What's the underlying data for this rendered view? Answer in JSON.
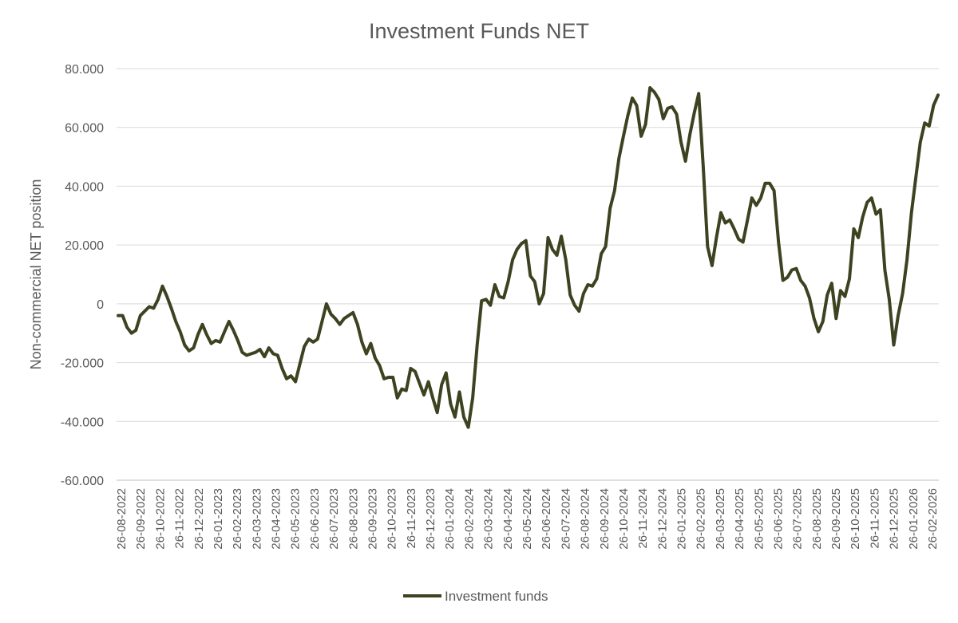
{
  "chart_data": {
    "type": "line",
    "title": "Investment Funds NET",
    "xlabel": "",
    "ylabel": "Non-commercial NET position",
    "ylim": [
      -60000,
      80000
    ],
    "y_ticks": [
      80000,
      60000,
      40000,
      20000,
      0,
      -20000,
      -40000,
      -60000
    ],
    "y_tick_labels": [
      "80.000",
      "60.000",
      "40.000",
      "20.000",
      "0",
      "-20.000",
      "-40.000",
      "-60.000"
    ],
    "x_tick_labels": [
      "26-08-2022",
      "26-09-2022",
      "26-10-2022",
      "26-11-2022",
      "26-12-2022",
      "26-01-2023",
      "26-02-2023",
      "26-03-2023",
      "26-04-2023",
      "26-05-2023",
      "26-06-2023",
      "26-07-2023",
      "26-08-2023",
      "26-09-2023",
      "26-10-2023",
      "26-11-2023",
      "26-12-2023",
      "26-01-2024",
      "26-02-2024",
      "26-03-2024",
      "26-04-2024",
      "26-05-2024",
      "26-06-2024",
      "26-07-2024",
      "26-08-2024",
      "26-09-2024",
      "26-10-2024",
      "26-11-2024",
      "26-12-2024",
      "26-01-2025",
      "26-02-2025",
      "26-03-2025",
      "26-04-2025",
      "26-05-2025",
      "26-06-2025",
      "26-07-2025",
      "26-08-2025",
      "26-09-2025",
      "26-10-2025",
      "26-11-2025",
      "26-12-2025",
      "26-01-2026",
      "26-02-2026"
    ],
    "grid": true,
    "legend_position": "bottom",
    "series": [
      {
        "name": "Investment funds",
        "color": "#3d4220",
        "values": [
          -4000,
          -4000,
          -8000,
          -10000,
          -9000,
          -4000,
          -2500,
          -1000,
          -1500,
          1500,
          6000,
          2500,
          -1500,
          -6000,
          -9500,
          -14000,
          -16000,
          -15000,
          -10500,
          -7000,
          -10500,
          -13500,
          -12500,
          -13000,
          -9500,
          -6000,
          -9000,
          -12500,
          -16500,
          -17500,
          -17000,
          -16500,
          -15500,
          -18000,
          -15000,
          -17000,
          -17500,
          -22000,
          -25500,
          -24500,
          -26500,
          -20500,
          -14500,
          -12000,
          -13000,
          -12000,
          -6000,
          0,
          -3500,
          -5000,
          -7000,
          -5000,
          -4000,
          -3000,
          -7000,
          -13000,
          -17000,
          -13500,
          -18500,
          -21000,
          -25500,
          -25000,
          -25000,
          -32000,
          -29000,
          -29500,
          -22000,
          -23000,
          -27000,
          -31000,
          -26500,
          -32000,
          -37000,
          -27500,
          -23500,
          -34000,
          -38500,
          -30000,
          -38500,
          -42000,
          -32000,
          -14000,
          1000,
          1500,
          -500,
          6500,
          2500,
          2000,
          7500,
          15000,
          18500,
          20500,
          21500,
          9500,
          7500,
          0,
          3500,
          22500,
          18500,
          16500,
          23000,
          15000,
          3000,
          -500,
          -2500,
          3500,
          6500,
          6000,
          8500,
          17000,
          19500,
          32500,
          38500,
          49500,
          57000,
          64000,
          70000,
          67500,
          57000,
          61000,
          73500,
          72000,
          69500,
          63000,
          66500,
          67000,
          64500,
          55000,
          48500,
          57500,
          65000,
          71500,
          47000,
          19500,
          13000,
          22500,
          31000,
          27500,
          28500,
          25500,
          22000,
          21000,
          28500,
          36000,
          33500,
          36000,
          41000,
          41000,
          38500,
          21000,
          8000,
          9000,
          11500,
          12000,
          8000,
          6000,
          2000,
          -5000,
          -9500,
          -6000,
          3000,
          7000,
          -5000,
          4500,
          2500,
          8500,
          25500,
          22500,
          29500,
          34500,
          36000,
          30500,
          32000,
          11500,
          1500,
          -14000,
          -4000,
          3500,
          15000,
          31000,
          43000,
          55000,
          61500,
          60500,
          67500,
          71000
        ]
      }
    ]
  }
}
